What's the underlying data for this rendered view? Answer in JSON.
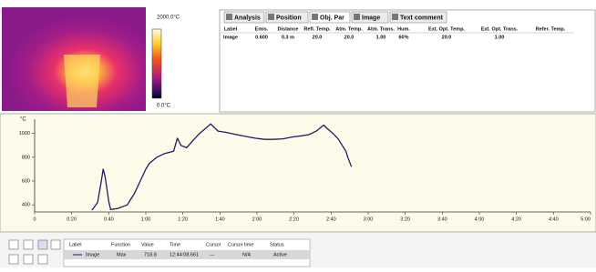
{
  "thermal_image": {
    "scale_max": "2000.0°C",
    "scale_min": "0.0°C"
  },
  "tabs": [
    "Analysis",
    "Position",
    "Obj. Par",
    "Image",
    "Text comment"
  ],
  "obj_par_table": {
    "headers": [
      "Label",
      "Emis.",
      "Distance",
      "Refl. Temp.",
      "Atm. Temp.",
      "Atm. Trans.",
      "Hum.",
      "Ext. Opt. Temp.",
      "Ext. Opt. Trans.",
      "Refer. Temp."
    ],
    "rows": [
      [
        "Image",
        "0.600",
        "0.3 m",
        "20.0",
        "20.0",
        "1.00",
        "60%",
        "20.0",
        "1.00"
      ]
    ]
  },
  "chart_data": {
    "type": "line",
    "y_label": "°C",
    "xlim": [
      0,
      300
    ],
    "ylim": [
      340,
      1120
    ],
    "xticks": [
      0,
      {
        "value": 20,
        "label": "0:20"
      },
      {
        "value": 40,
        "label": "0:40"
      },
      {
        "value": 60,
        "label": "1:00"
      },
      {
        "value": 80,
        "label": "1:20"
      },
      {
        "value": 100,
        "label": "1:40"
      },
      {
        "value": 120,
        "label": "2:00"
      },
      {
        "value": 140,
        "label": "2:20"
      },
      {
        "value": 160,
        "label": "2:40"
      },
      {
        "value": 180,
        "label": "3:00"
      },
      {
        "value": 200,
        "label": "3:20"
      },
      {
        "value": 220,
        "label": "3:40"
      },
      {
        "value": 240,
        "label": "4:00"
      },
      {
        "value": 260,
        "label": "4:20"
      },
      {
        "value": 280,
        "label": "4:40"
      },
      {
        "value": 300,
        "label": "5:00"
      }
    ],
    "yticks": [
      400,
      600,
      800,
      1000
    ],
    "x": [
      31,
      34,
      36,
      37,
      38,
      40,
      41,
      45,
      50,
      54,
      57,
      60,
      62,
      66,
      70,
      75,
      77,
      79,
      82,
      86,
      89,
      92,
      95,
      97,
      99,
      103,
      109,
      114,
      119,
      124,
      129,
      134,
      139,
      144,
      148,
      152,
      156,
      158,
      161,
      164,
      166,
      168,
      169,
      171
    ],
    "series": [
      {
        "name": "Image",
        "color": "#1b1f5e",
        "values": [
          355,
          420,
          600,
          700,
          640,
          430,
          360,
          370,
          400,
          500,
          600,
          700,
          750,
          800,
          830,
          850,
          960,
          900,
          880,
          950,
          1000,
          1040,
          1080,
          1050,
          1020,
          1010,
          990,
          975,
          960,
          950,
          950,
          955,
          970,
          980,
          990,
          1020,
          1070,
          1040,
          1000,
          950,
          900,
          850,
          800,
          720
        ]
      }
    ],
    "grid": false
  },
  "results_table": {
    "headers": [
      "Label",
      "Function",
      "Value",
      "Time",
      "Cursor",
      "Cursor time",
      "Status"
    ],
    "rows": [
      [
        "Image",
        "Max",
        "718.8",
        "12:44:08.661",
        "---",
        "N/A",
        "Active"
      ]
    ]
  }
}
